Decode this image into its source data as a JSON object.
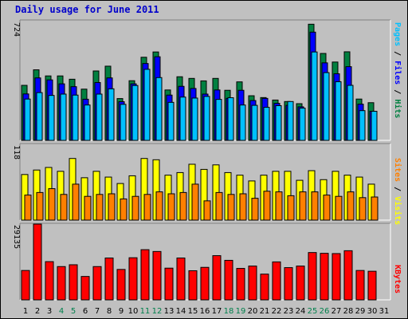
{
  "title": "Daily usage for June 2011",
  "legend": {
    "pages": "Pages",
    "files": "Files",
    "hits": "Hits",
    "sep": " / ",
    "sites": "Sites",
    "visits": "Visits",
    "kbytes": "KBytes"
  },
  "colors": {
    "hits": "#008040",
    "files": "#0000ff",
    "pages": "#00c0ff",
    "visits": "#ffff00",
    "sites": "#ff8000",
    "kbytes": "#ff0000",
    "weekend_day": "#00804c",
    "weekday": "#000000",
    "title": "#0000cc"
  },
  "chart_data": [
    {
      "type": "bar",
      "name": "hits-files-pages",
      "ymax_label": "724",
      "ylim": [
        0,
        724
      ],
      "x": [
        1,
        2,
        3,
        4,
        5,
        6,
        7,
        8,
        9,
        10,
        11,
        12,
        13,
        14,
        15,
        16,
        17,
        18,
        19,
        20,
        21,
        22,
        23,
        24,
        25,
        26,
        27,
        28,
        29,
        30,
        31
      ],
      "series": [
        {
          "name": "Hits",
          "values": [
            333,
            427,
            390,
            390,
            370,
            310,
            420,
            449,
            253,
            361,
            503,
            535,
            305,
            385,
            375,
            360,
            375,
            303,
            354,
            270,
            259,
            244,
            235,
            222,
            703,
            526,
            474,
            536,
            250,
            228,
            0
          ]
        },
        {
          "name": "Files",
          "values": [
            281,
            378,
            366,
            342,
            325,
            249,
            350,
            378,
            234,
            342,
            465,
            506,
            274,
            327,
            314,
            280,
            305,
            254,
            303,
            241,
            254,
            224,
            212,
            203,
            655,
            469,
            403,
            446,
            219,
            176,
            0
          ]
        },
        {
          "name": "Pages",
          "values": [
            250,
            289,
            272,
            280,
            274,
            214,
            280,
            312,
            218,
            332,
            430,
            380,
            230,
            262,
            256,
            266,
            248,
            258,
            214,
            212,
            200,
            210,
            235,
            195,
            535,
            410,
            355,
            333,
            180,
            176,
            0
          ]
        }
      ]
    },
    {
      "type": "bar",
      "name": "visits-sites",
      "ymax_label": "118",
      "ylim": [
        0,
        118
      ],
      "x": [
        1,
        2,
        3,
        4,
        5,
        6,
        7,
        8,
        9,
        10,
        11,
        12,
        13,
        14,
        15,
        16,
        17,
        18,
        19,
        20,
        21,
        22,
        23,
        24,
        25,
        26,
        27,
        28,
        29,
        30,
        31
      ],
      "series": [
        {
          "name": "Visits",
          "values": [
            71,
            78,
            82,
            76,
            96,
            66,
            76,
            67,
            57,
            69,
            96,
            94,
            70,
            74,
            87,
            79,
            86,
            74,
            70,
            61,
            70,
            76,
            76,
            62,
            77,
            63,
            76,
            70,
            67,
            56,
            0
          ]
        },
        {
          "name": "Sites",
          "values": [
            39,
            43,
            49,
            40,
            56,
            37,
            40,
            41,
            33,
            37,
            40,
            44,
            41,
            43,
            56,
            30,
            43,
            40,
            41,
            34,
            45,
            44,
            38,
            44,
            44,
            39,
            37,
            44,
            35,
            36,
            0
          ]
        }
      ]
    },
    {
      "type": "bar",
      "name": "kbytes",
      "ymax_label": "29135",
      "ylim": [
        0,
        29135
      ],
      "x": [
        1,
        2,
        3,
        4,
        5,
        6,
        7,
        8,
        9,
        10,
        11,
        12,
        13,
        14,
        15,
        16,
        17,
        18,
        19,
        20,
        21,
        22,
        23,
        24,
        25,
        26,
        27,
        28,
        29,
        30,
        31
      ],
      "series": [
        {
          "name": "KBytes",
          "values": [
            11300,
            29135,
            14700,
            12800,
            13500,
            9000,
            12800,
            16100,
            11700,
            16200,
            19300,
            18600,
            12200,
            16100,
            11200,
            12500,
            17000,
            15200,
            12100,
            13000,
            9900,
            14600,
            12400,
            13000,
            18200,
            17900,
            17800,
            18900,
            11300,
            11000,
            0
          ]
        }
      ]
    }
  ],
  "days": [
    "1",
    "2",
    "3",
    "4",
    "5",
    "6",
    "7",
    "8",
    "9",
    "10",
    "11",
    "12",
    "13",
    "14",
    "15",
    "16",
    "17",
    "18",
    "19",
    "20",
    "21",
    "22",
    "23",
    "24",
    "25",
    "26",
    "27",
    "28",
    "29",
    "30",
    "31"
  ],
  "weekend_days": [
    4,
    5,
    11,
    12,
    18,
    19,
    25,
    26
  ]
}
